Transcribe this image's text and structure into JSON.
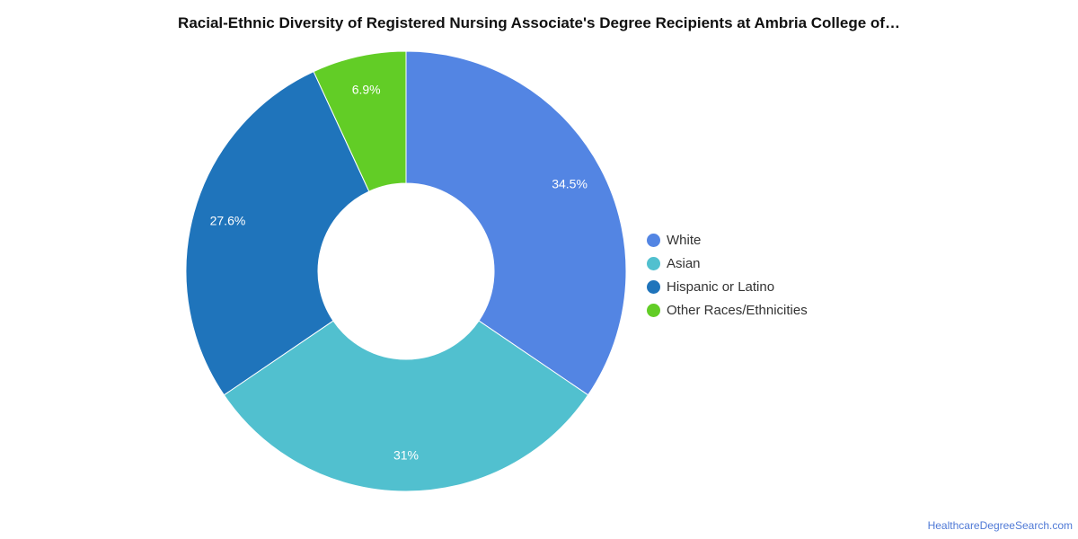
{
  "credit": "HealthcareDegreeSearch.com",
  "chart_data": {
    "type": "pie",
    "variant": "donut",
    "title": "Racial-Ethnic Diversity of Registered Nursing Associate's Degree Recipients at Ambria College of…",
    "legend_position": "right",
    "categories": [
      "White",
      "Asian",
      "Hispanic or Latino",
      "Other Races/Ethnicities"
    ],
    "values": [
      34.5,
      31,
      27.6,
      6.9
    ],
    "value_labels": [
      "34.5%",
      "31%",
      "27.6%",
      "6.9%"
    ],
    "colors": [
      "#5385e3",
      "#51c0cf",
      "#1f74bb",
      "#62cd26"
    ]
  }
}
